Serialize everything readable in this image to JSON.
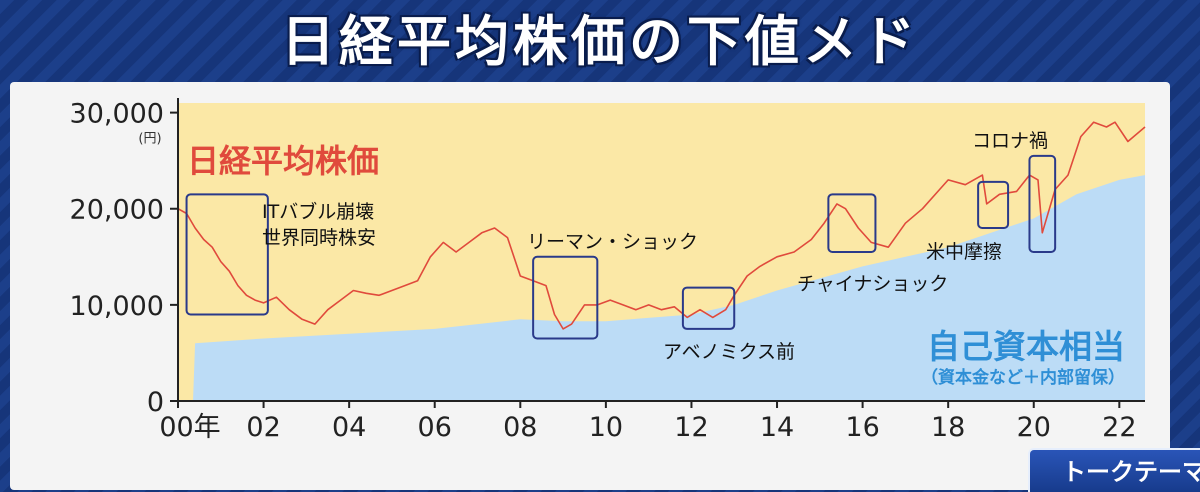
{
  "title": "日経平均株価の下値メド",
  "ticker_label": "トークテーマ",
  "colors": {
    "price_line": "#e04a3c",
    "equity_fill": "#bcdcf6",
    "plot_bg": "#fbe8a6",
    "box": "#2a3a8a",
    "title_bg": "#1c3f8a"
  },
  "chart_data": {
    "type": "area",
    "xlabel": "",
    "ylabel": "",
    "y_unit": "(円)",
    "x_tick_labels": [
      "00年",
      "02",
      "04",
      "06",
      "08",
      "10",
      "12",
      "14",
      "16",
      "18",
      "20",
      "22"
    ],
    "y_tick_labels": [
      "0",
      "10,000",
      "20,000",
      "30,000"
    ],
    "ylim": [
      0,
      31000
    ],
    "xlim": [
      2000.0,
      2022.6
    ],
    "grid": false,
    "series": [
      {
        "name": "日経平均株価",
        "kind": "line",
        "x": [
          2000.0,
          2000.2,
          2000.4,
          2000.6,
          2000.8,
          2001.0,
          2001.2,
          2001.4,
          2001.6,
          2001.8,
          2002.0,
          2002.3,
          2002.6,
          2002.9,
          2003.2,
          2003.5,
          2003.8,
          2004.1,
          2004.4,
          2004.7,
          2005.0,
          2005.3,
          2005.6,
          2005.9,
          2006.2,
          2006.5,
          2006.8,
          2007.1,
          2007.4,
          2007.7,
          2008.0,
          2008.3,
          2008.6,
          2008.8,
          2009.0,
          2009.2,
          2009.5,
          2009.8,
          2010.1,
          2010.4,
          2010.7,
          2011.0,
          2011.3,
          2011.6,
          2011.9,
          2012.2,
          2012.5,
          2012.8,
          2013.0,
          2013.3,
          2013.6,
          2014.0,
          2014.4,
          2014.8,
          2015.1,
          2015.4,
          2015.6,
          2015.9,
          2016.2,
          2016.6,
          2017.0,
          2017.4,
          2017.8,
          2018.0,
          2018.4,
          2018.8,
          2018.9,
          2019.2,
          2019.6,
          2019.9,
          2020.1,
          2020.2,
          2020.5,
          2020.8,
          2021.1,
          2021.4,
          2021.7,
          2021.9,
          2022.2,
          2022.6
        ],
        "y": [
          20000,
          19500,
          18000,
          16800,
          16000,
          14500,
          13500,
          12000,
          11000,
          10500,
          10200,
          10800,
          9500,
          8500,
          8000,
          9500,
          10500,
          11500,
          11200,
          11000,
          11500,
          12000,
          12500,
          15000,
          16500,
          15500,
          16500,
          17500,
          18000,
          17000,
          13000,
          12500,
          12000,
          9000,
          7500,
          8000,
          10000,
          10000,
          10500,
          10000,
          9500,
          10000,
          9500,
          9800,
          8700,
          9500,
          8700,
          9500,
          11000,
          13000,
          14000,
          15000,
          15500,
          16800,
          18500,
          20500,
          20000,
          18000,
          16500,
          16000,
          18500,
          20000,
          22000,
          23000,
          22500,
          23500,
          20500,
          21500,
          21800,
          23500,
          23000,
          17500,
          22000,
          23500,
          27500,
          29000,
          28500,
          29000,
          27000,
          28500
        ]
      },
      {
        "name": "自己資本相当",
        "kind": "area",
        "x": [
          2000.0,
          2000.35,
          2000.4,
          2002.0,
          2004.0,
          2006.0,
          2008.0,
          2009.0,
          2010.0,
          2012.0,
          2013.0,
          2014.0,
          2016.0,
          2017.0,
          2018.0,
          2019.0,
          2020.0,
          2021.0,
          2022.0,
          2022.6
        ],
        "y": [
          0,
          0,
          6000,
          6500,
          7000,
          7500,
          8500,
          8300,
          8300,
          9000,
          10000,
          11500,
          14000,
          15000,
          16000,
          17500,
          19000,
          21500,
          23000,
          23500
        ]
      }
    ],
    "labels": {
      "price_series": "日経平均株価",
      "equity_series": "自己資本相当",
      "equity_sub": "（資本金など＋内部留保）"
    },
    "annotations": [
      {
        "lines": [
          "ITバブル崩壊",
          "世界同時株安"
        ],
        "x_range": [
          2000.2,
          2002.1
        ],
        "y_range": [
          9000,
          21500
        ]
      },
      {
        "lines": [
          "リーマン・ショック"
        ],
        "x_range": [
          2008.3,
          2009.8
        ],
        "y_range": [
          6500,
          15000
        ]
      },
      {
        "lines": [
          "アベノミクス前"
        ],
        "x_range": [
          2011.8,
          2013.0
        ],
        "y_range": [
          7500,
          11800
        ]
      },
      {
        "lines": [
          "チャイナショック"
        ],
        "x_range": [
          2015.2,
          2016.3
        ],
        "y_range": [
          15500,
          21500
        ]
      },
      {
        "lines": [
          "米中摩擦"
        ],
        "x_range": [
          2018.7,
          2019.4
        ],
        "y_range": [
          18000,
          22800
        ]
      },
      {
        "lines": [
          "コロナ禍"
        ],
        "x_range": [
          2019.9,
          2020.5
        ],
        "y_range": [
          15500,
          25500
        ]
      }
    ]
  }
}
